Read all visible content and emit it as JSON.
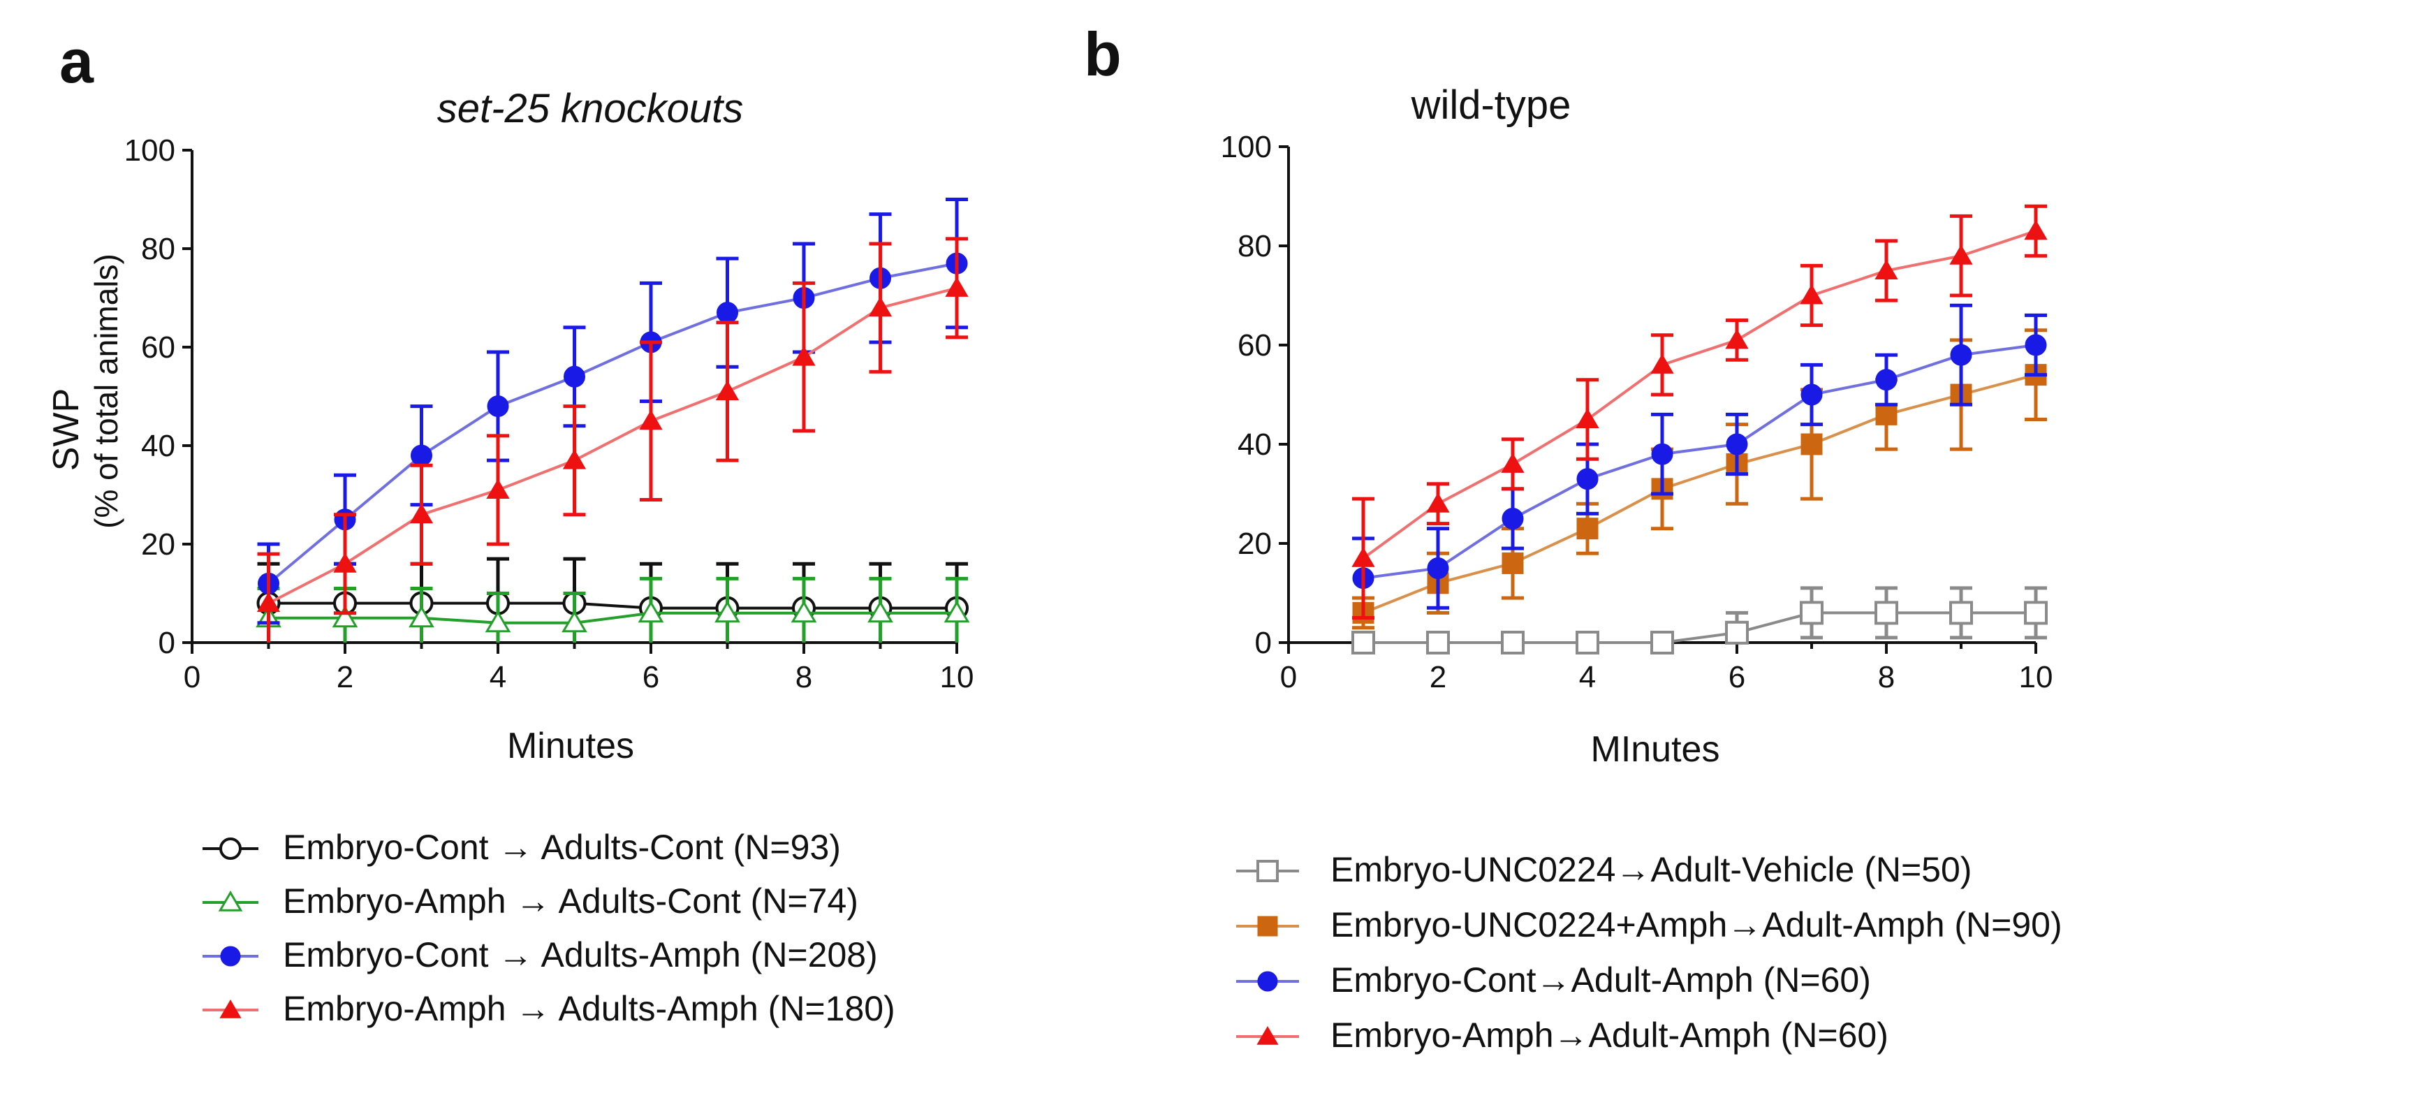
{
  "colors": {
    "black": "#111111",
    "green": "#22a02a",
    "blue": "#1a1ae6",
    "red": "#ee1111",
    "gray": "#8a8a8a",
    "orange": "#cc6611",
    "red_light": "#f07070",
    "blue_light": "#6f6fe0",
    "orange_light": "#d8904a"
  },
  "chart_data": [
    {
      "type": "line",
      "panel_label": "a",
      "title": "set-25 knockouts",
      "xlabel": "Minutes",
      "ylabel": "SWP",
      "ylabel2": "(% of total animals)",
      "xlim": [
        0,
        10
      ],
      "ylim": [
        0,
        100
      ],
      "xticks": [
        "0",
        "2",
        "4",
        "6",
        "8",
        "10"
      ],
      "yticks": [
        "0",
        "20",
        "40",
        "60",
        "80",
        "100"
      ],
      "x": [
        1,
        2,
        3,
        4,
        5,
        6,
        7,
        8,
        9,
        10
      ],
      "series": [
        {
          "name": "Embryo-Cont → Adults-Cont (N=93)",
          "color": "black",
          "marker": "circle-open",
          "values": [
            8,
            8,
            8,
            8,
            8,
            7,
            7,
            7,
            7,
            7
          ],
          "errors": [
            8,
            8,
            8,
            9,
            9,
            9,
            9,
            9,
            9,
            9
          ]
        },
        {
          "name": "Embryo-Amph → Adults-Cont (N=74)",
          "color": "green",
          "marker": "triangle-open",
          "values": [
            5,
            5,
            5,
            4,
            4,
            6,
            6,
            6,
            6,
            6
          ],
          "errors": [
            6,
            6,
            6,
            6,
            6,
            7,
            7,
            7,
            7,
            7
          ]
        },
        {
          "name": "Embryo-Cont → Adults-Amph (N=208)",
          "color": "blue",
          "marker": "circle-filled",
          "values": [
            12,
            25,
            38,
            48,
            54,
            61,
            67,
            70,
            74,
            77
          ],
          "errors": [
            8,
            9,
            10,
            11,
            10,
            12,
            11,
            11,
            13,
            13
          ]
        },
        {
          "name": "Embryo-Amph → Adults-Amph (N=180)",
          "color": "red",
          "marker": "triangle-filled",
          "values": [
            8,
            16,
            26,
            31,
            37,
            45,
            51,
            58,
            68,
            72
          ],
          "errors": [
            10,
            10,
            10,
            11,
            11,
            16,
            14,
            15,
            13,
            10
          ]
        }
      ]
    },
    {
      "type": "line",
      "panel_label": "b",
      "title": "wild-type",
      "xlabel": "MInutes",
      "ylabel": "",
      "xlim": [
        0,
        10
      ],
      "ylim": [
        0,
        100
      ],
      "xticks": [
        "0",
        "2",
        "4",
        "6",
        "8",
        "10"
      ],
      "yticks": [
        "0",
        "20",
        "40",
        "60",
        "80",
        "100"
      ],
      "x": [
        1,
        2,
        3,
        4,
        5,
        6,
        7,
        8,
        9,
        10
      ],
      "series": [
        {
          "name": "Embryo-UNC0224→Adult-Vehicle (N=50)",
          "color": "gray",
          "marker": "square-open",
          "values": [
            0,
            0,
            0,
            0,
            0,
            2,
            6,
            6,
            6,
            6
          ],
          "errors": [
            0,
            0,
            0,
            0,
            0,
            4,
            5,
            5,
            5,
            5
          ]
        },
        {
          "name": "Embryo-UNC0224+Amph→Adult-Amph (N=90)",
          "color": "orange",
          "marker": "square-filled",
          "values": [
            6,
            12,
            16,
            23,
            31,
            36,
            40,
            46,
            50,
            54
          ],
          "errors": [
            3,
            6,
            7,
            5,
            8,
            8,
            11,
            7,
            11,
            9
          ]
        },
        {
          "name": "Embryo-Cont→Adult-Amph (N=60)",
          "color": "blue",
          "marker": "circle-filled",
          "values": [
            13,
            15,
            25,
            33,
            38,
            40,
            50,
            53,
            58,
            60
          ],
          "errors": [
            8,
            8,
            6,
            7,
            8,
            6,
            6,
            5,
            10,
            6
          ]
        },
        {
          "name": "Embryo-Amph→Adult-Amph (N=60)",
          "color": "red",
          "marker": "triangle-filled",
          "values": [
            17,
            28,
            36,
            45,
            56,
            61,
            70,
            75,
            78,
            83
          ],
          "errors": [
            12,
            4,
            5,
            8,
            6,
            4,
            6,
            6,
            8,
            5
          ]
        }
      ]
    }
  ]
}
